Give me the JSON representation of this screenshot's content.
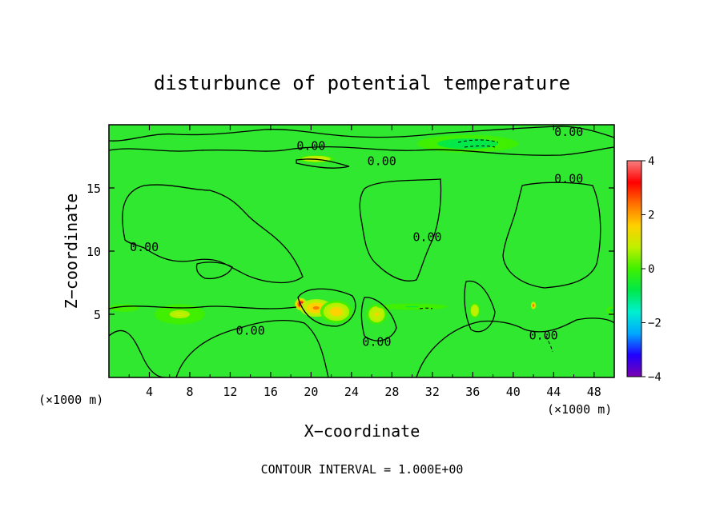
{
  "chart_data": {
    "type": "heatmap",
    "title": "disturbunce of potential temperature",
    "xlabel": "X−coordinate",
    "ylabel": "Z−coordinate",
    "x_unit": "(×1000 m)",
    "x_unit_right": "(×1000 m)",
    "xlim": [
      0,
      50
    ],
    "ylim": [
      0,
      20
    ],
    "x_ticks": [
      4,
      8,
      12,
      16,
      20,
      24,
      28,
      32,
      36,
      40,
      44,
      48
    ],
    "y_ticks": [
      5,
      10,
      15
    ],
    "colorbar": {
      "range": [
        -4,
        4
      ],
      "ticks": [
        "4",
        "2",
        "0",
        "−2",
        "−4"
      ],
      "colors": [
        "#7a00b0",
        "#2000ff",
        "#00a8ff",
        "#00f0d0",
        "#00e84a",
        "#40f000",
        "#c0f000",
        "#ffd000",
        "#ff7000",
        "#ff0000",
        "#f88080"
      ]
    },
    "background_value": 0.0,
    "contour_labels": [
      "0.00",
      "0.00",
      "0.00",
      "0.00",
      "0.00",
      "0.00",
      "0.00",
      "0.00",
      "0.00"
    ],
    "features": [
      {
        "kind": "warm",
        "x": 19.0,
        "y": 5.8,
        "sx": 0.6,
        "sy": 0.5,
        "amp": 3.6
      },
      {
        "kind": "warm",
        "x": 20.5,
        "y": 5.5,
        "sx": 1.6,
        "sy": 0.7,
        "amp": 2.2
      },
      {
        "kind": "warm",
        "x": 22.5,
        "y": 5.2,
        "sx": 1.6,
        "sy": 0.9,
        "amp": 1.5
      },
      {
        "kind": "warm",
        "x": 26.5,
        "y": 5.0,
        "sx": 1.0,
        "sy": 0.8,
        "amp": 1.2
      },
      {
        "kind": "warm",
        "x": 20.5,
        "y": 17.3,
        "sx": 1.8,
        "sy": 0.3,
        "amp": 1.2
      },
      {
        "kind": "warm",
        "x": 36.2,
        "y": 5.3,
        "sx": 0.5,
        "sy": 0.6,
        "amp": 1.1
      },
      {
        "kind": "warm",
        "x": 42.0,
        "y": 5.7,
        "sx": 0.25,
        "sy": 0.3,
        "amp": 2.6
      },
      {
        "kind": "warm",
        "x": 7.0,
        "y": 5.0,
        "sx": 2.5,
        "sy": 0.8,
        "amp": 0.6
      },
      {
        "kind": "cool",
        "x": 35.5,
        "y": 18.5,
        "sx": 5.0,
        "sy": 0.7,
        "amp": -0.9
      },
      {
        "kind": "cool",
        "x": 30.0,
        "y": 5.6,
        "sx": 3.5,
        "sy": 0.25,
        "amp": -0.5
      },
      {
        "kind": "cool",
        "x": 49.8,
        "y": 5.3,
        "sx": 0.6,
        "sy": 0.3,
        "amp": -0.6
      },
      {
        "kind": "cool",
        "x": 1.5,
        "y": 5.5,
        "sx": 1.5,
        "sy": 0.3,
        "amp": -0.3
      }
    ],
    "footnote": "CONTOUR INTERVAL = 1.000E+00"
  }
}
